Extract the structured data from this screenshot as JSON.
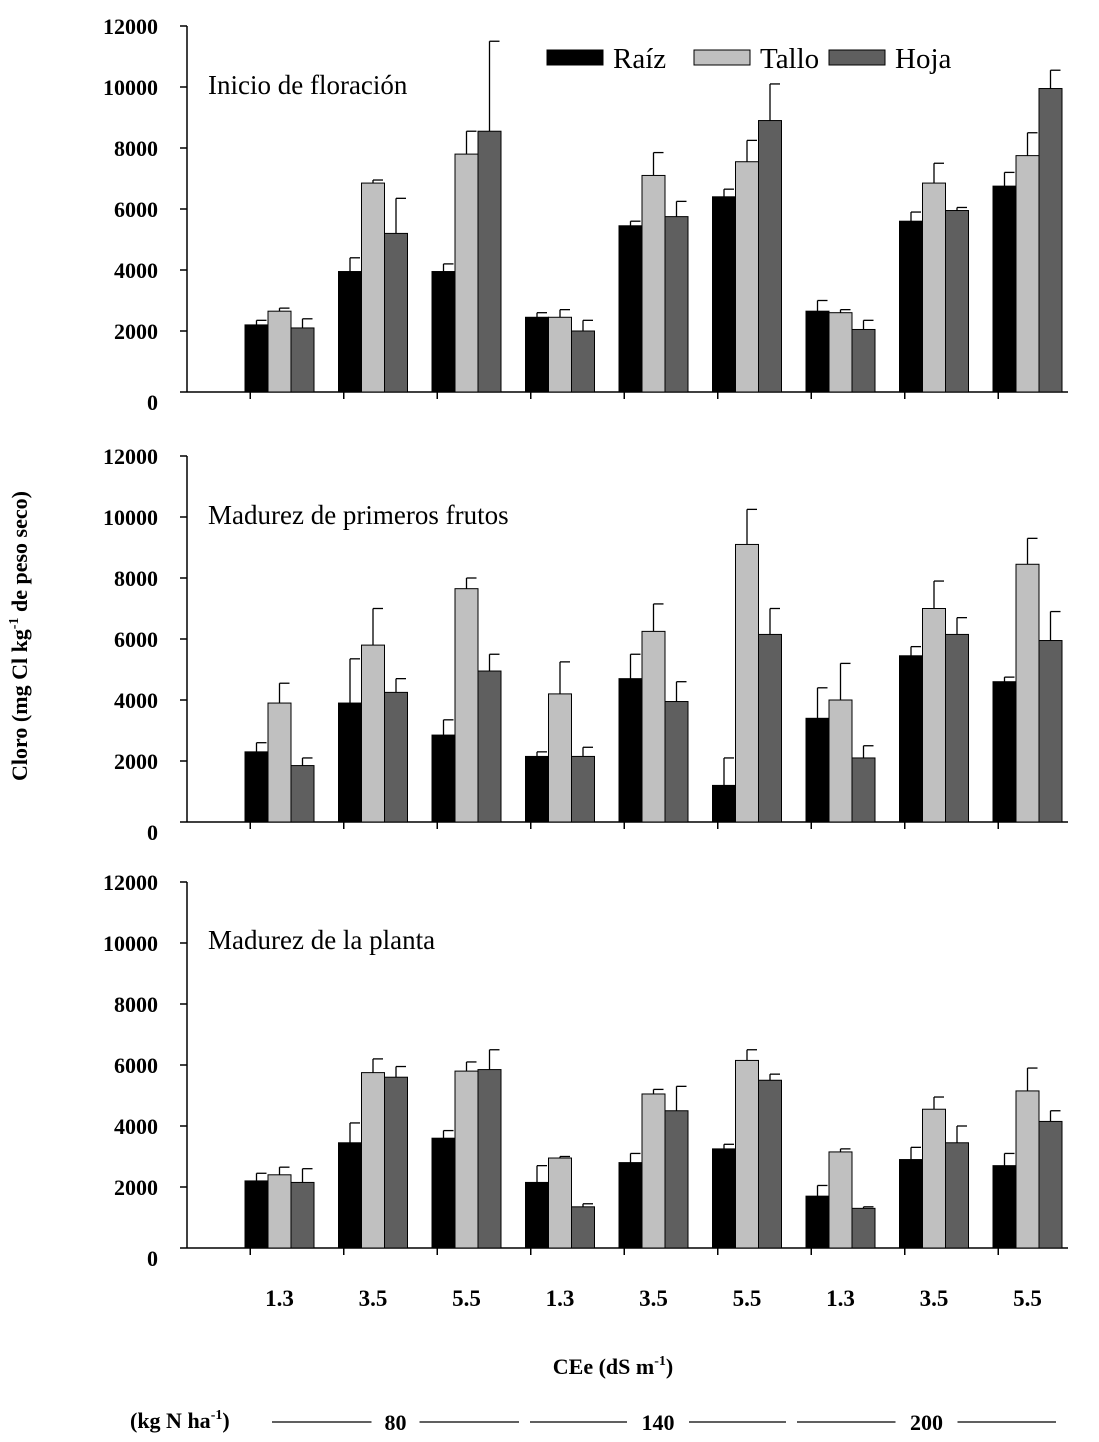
{
  "chart_data": {
    "type": "bar",
    "ylabel_main": "Cloro (mg Cl kg",
    "ylabel_sup": "-1",
    "ylabel_rest": " de peso seco)",
    "xlabel_main": "CEe (dS m",
    "xlabel_sup": "-1",
    "xlabel_rest": ")",
    "ylim": [
      0,
      12000
    ],
    "yticks": [
      "0",
      "2000",
      "4000",
      "6000",
      "8000",
      "10000",
      "12000"
    ],
    "categories": [
      "1.3",
      "3.5",
      "5.5",
      "1.3",
      "3.5",
      "5.5",
      "1.3",
      "3.5",
      "5.5"
    ],
    "legend": {
      "position": "top-right",
      "entries": [
        "Raíz",
        "Tallo",
        "Hoja"
      ]
    },
    "colors": {
      "Raíz": "#000000",
      "Tallo": "#c0c0c0",
      "Hoja": "#5f5f5f"
    },
    "nitrogen": {
      "label_main": "(kg N ha",
      "label_sup": "-1",
      "label_rest": ")",
      "groups": [
        "80",
        "140",
        "200"
      ]
    },
    "panels": [
      {
        "title": "Inicio de floración",
        "series": [
          {
            "name": "Raíz",
            "values": [
              2200,
              3950,
              3950,
              2450,
              5450,
              6400,
              2650,
              5600,
              6750
            ],
            "errors": [
              150,
              450,
              250,
              150,
              150,
              250,
              350,
              300,
              450
            ]
          },
          {
            "name": "Tallo",
            "values": [
              2650,
              6850,
              7800,
              2450,
              7100,
              7550,
              2600,
              6850,
              7750
            ],
            "errors": [
              100,
              100,
              750,
              250,
              750,
              700,
              100,
              650,
              750
            ]
          },
          {
            "name": "Hoja",
            "values": [
              2100,
              5200,
              8550,
              2000,
              5750,
              8900,
              2050,
              5950,
              9950
            ],
            "errors": [
              300,
              1150,
              2950,
              350,
              500,
              1200,
              300,
              100,
              600
            ]
          }
        ]
      },
      {
        "title": "Madurez de primeros frutos",
        "series": [
          {
            "name": "Raíz",
            "values": [
              2300,
              3900,
              2850,
              2150,
              4700,
              1200,
              3400,
              5450,
              4600
            ],
            "errors": [
              300,
              1450,
              500,
              150,
              800,
              900,
              1000,
              300,
              150
            ]
          },
          {
            "name": "Tallo",
            "values": [
              3900,
              5800,
              7650,
              4200,
              6250,
              9100,
              4000,
              7000,
              8450
            ],
            "errors": [
              650,
              1200,
              350,
              1050,
              900,
              1150,
              1200,
              900,
              850
            ]
          },
          {
            "name": "Hoja",
            "values": [
              1850,
              4250,
              4950,
              2150,
              3950,
              6150,
              2100,
              6150,
              5950
            ],
            "errors": [
              250,
              450,
              550,
              300,
              650,
              850,
              400,
              550,
              950
            ]
          }
        ]
      },
      {
        "title": "Madurez de la planta",
        "series": [
          {
            "name": "Raíz",
            "values": [
              2200,
              3450,
              3600,
              2150,
              2800,
              3250,
              1700,
              2900,
              2700
            ],
            "errors": [
              250,
              650,
              250,
              550,
              300,
              150,
              350,
              400,
              400
            ]
          },
          {
            "name": "Tallo",
            "values": [
              2400,
              5750,
              5800,
              2950,
              5050,
              6150,
              3150,
              4550,
              5150
            ],
            "errors": [
              250,
              450,
              300,
              50,
              150,
              350,
              100,
              400,
              750
            ]
          },
          {
            "name": "Hoja",
            "values": [
              2150,
              5600,
              5850,
              1350,
              4500,
              5500,
              1300,
              3450,
              4150
            ],
            "errors": [
              450,
              350,
              650,
              100,
              800,
              200,
              50,
              550,
              350
            ]
          }
        ]
      }
    ]
  }
}
